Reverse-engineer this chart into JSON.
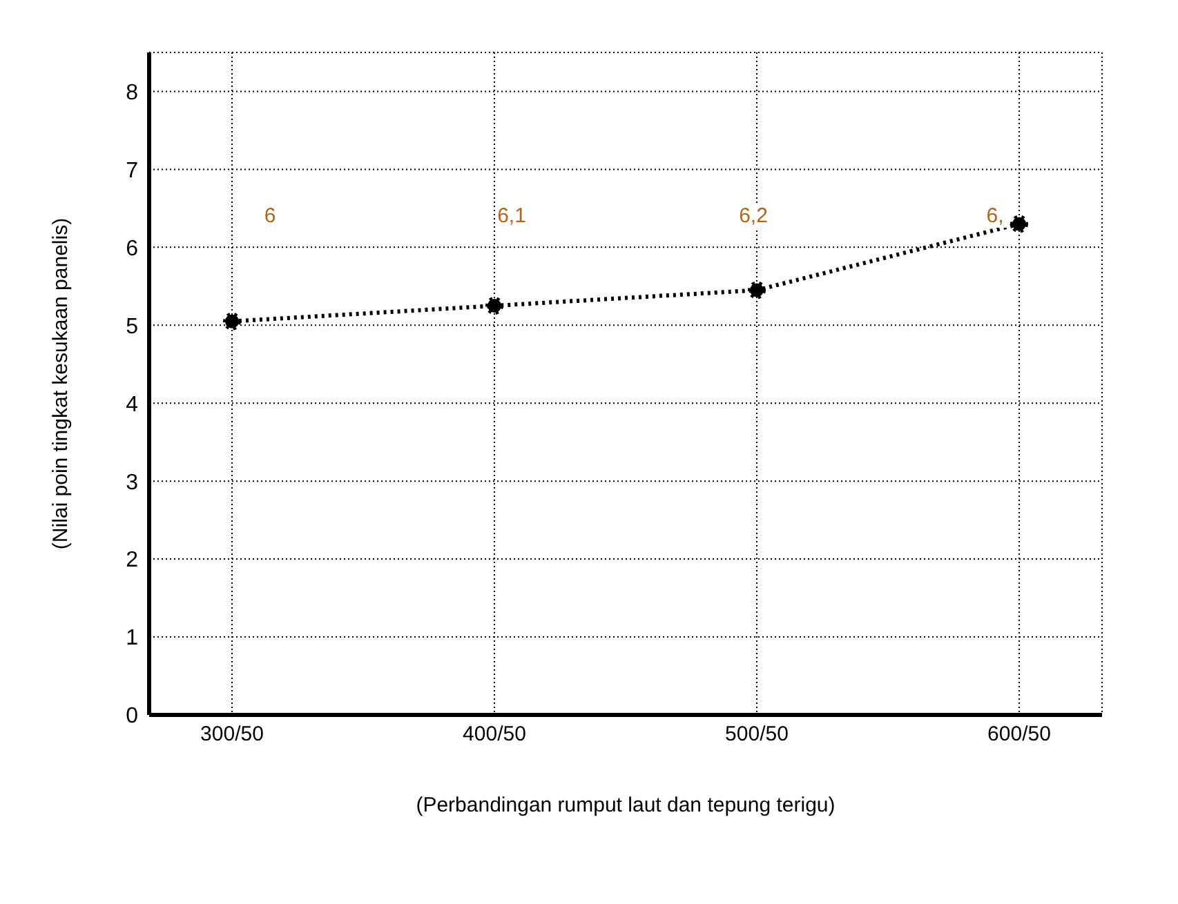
{
  "chart_data": {
    "type": "line",
    "xlabel": "(Perbandingan rumput laut dan tepung terigu)",
    "ylabel": "(Nilai poin tingkat kesukaan panelis)",
    "categories": [
      "300/50",
      "400/50",
      "500/50",
      "600/50"
    ],
    "series": [
      {
        "color": "#000000",
        "values": [
          5.05,
          5.25,
          5.45,
          6.3
        ]
      }
    ],
    "ylim": [
      0,
      8.5
    ],
    "yticks": [
      0,
      1,
      2,
      3,
      4,
      5,
      6,
      7,
      8
    ],
    "grid": true,
    "marker": "circle",
    "line_style": "dotted",
    "legend": false,
    "annotations": [
      "6",
      "6,1",
      "6,2",
      "6,"
    ]
  }
}
